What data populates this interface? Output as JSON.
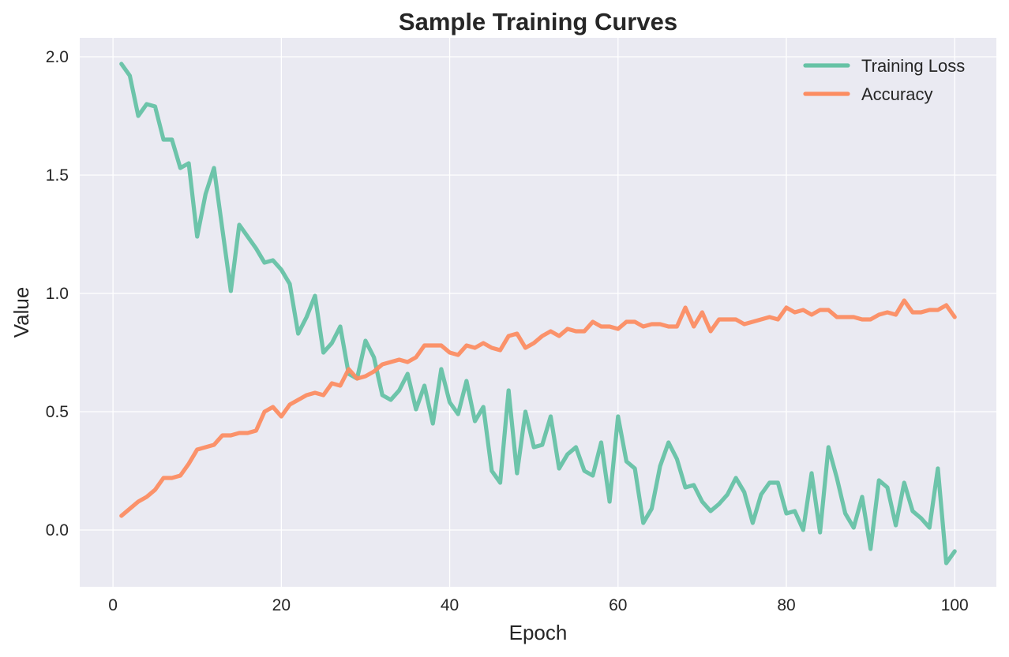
{
  "chart_data": {
    "type": "line",
    "title": "Sample Training Curves",
    "xlabel": "Epoch",
    "ylabel": "Value",
    "xlim": [
      -3.95,
      104.95
    ],
    "ylim": [
      -0.24,
      2.08
    ],
    "xticks": [
      0,
      20,
      40,
      60,
      80,
      100
    ],
    "xtick_labels": [
      "0",
      "20",
      "40",
      "60",
      "80",
      "100"
    ],
    "yticks": [
      0.0,
      0.5,
      1.0,
      1.5,
      2.0
    ],
    "ytick_labels": [
      "0.0",
      "0.5",
      "1.0",
      "1.5",
      "2.0"
    ],
    "grid": true,
    "legend_position": "top-right",
    "background_color": "#eaeaf2",
    "x": [
      1,
      2,
      3,
      4,
      5,
      6,
      7,
      8,
      9,
      10,
      11,
      12,
      13,
      14,
      15,
      16,
      17,
      18,
      19,
      20,
      21,
      22,
      23,
      24,
      25,
      26,
      27,
      28,
      29,
      30,
      31,
      32,
      33,
      34,
      35,
      36,
      37,
      38,
      39,
      40,
      41,
      42,
      43,
      44,
      45,
      46,
      47,
      48,
      49,
      50,
      51,
      52,
      53,
      54,
      55,
      56,
      57,
      58,
      59,
      60,
      61,
      62,
      63,
      64,
      65,
      66,
      67,
      68,
      69,
      70,
      71,
      72,
      73,
      74,
      75,
      76,
      77,
      78,
      79,
      80,
      81,
      82,
      83,
      84,
      85,
      86,
      87,
      88,
      89,
      90,
      91,
      92,
      93,
      94,
      95,
      96,
      97,
      98,
      99,
      100
    ],
    "series": [
      {
        "name": "Training Loss",
        "color": "#66c2a5",
        "values": [
          1.97,
          1.92,
          1.75,
          1.8,
          1.79,
          1.65,
          1.65,
          1.53,
          1.55,
          1.24,
          1.42,
          1.53,
          1.27,
          1.01,
          1.29,
          1.24,
          1.19,
          1.13,
          1.14,
          1.1,
          1.04,
          0.83,
          0.9,
          0.99,
          0.75,
          0.79,
          0.86,
          0.66,
          0.64,
          0.8,
          0.73,
          0.57,
          0.55,
          0.59,
          0.66,
          0.51,
          0.61,
          0.45,
          0.68,
          0.54,
          0.49,
          0.63,
          0.46,
          0.52,
          0.25,
          0.2,
          0.59,
          0.24,
          0.5,
          0.35,
          0.36,
          0.48,
          0.26,
          0.32,
          0.35,
          0.25,
          0.23,
          0.37,
          0.12,
          0.48,
          0.29,
          0.26,
          0.03,
          0.09,
          0.27,
          0.37,
          0.3,
          0.18,
          0.19,
          0.12,
          0.08,
          0.11,
          0.15,
          0.22,
          0.16,
          0.03,
          0.15,
          0.2,
          0.2,
          0.07,
          0.08,
          0.0,
          0.24,
          -0.01,
          0.35,
          0.22,
          0.07,
          0.01,
          0.14,
          -0.08,
          0.21,
          0.18,
          0.02,
          0.2,
          0.08,
          0.05,
          0.01,
          0.26,
          -0.14,
          -0.09
        ]
      },
      {
        "name": "Accuracy",
        "color": "#fc8d62",
        "values": [
          0.06,
          0.09,
          0.12,
          0.14,
          0.17,
          0.22,
          0.22,
          0.23,
          0.28,
          0.34,
          0.35,
          0.36,
          0.4,
          0.4,
          0.41,
          0.41,
          0.42,
          0.5,
          0.52,
          0.48,
          0.53,
          0.55,
          0.57,
          0.58,
          0.57,
          0.62,
          0.61,
          0.68,
          0.64,
          0.65,
          0.67,
          0.7,
          0.71,
          0.72,
          0.71,
          0.73,
          0.78,
          0.78,
          0.78,
          0.75,
          0.74,
          0.78,
          0.77,
          0.79,
          0.77,
          0.76,
          0.82,
          0.83,
          0.77,
          0.79,
          0.82,
          0.84,
          0.82,
          0.85,
          0.84,
          0.84,
          0.88,
          0.86,
          0.86,
          0.85,
          0.88,
          0.88,
          0.86,
          0.87,
          0.87,
          0.86,
          0.86,
          0.94,
          0.86,
          0.92,
          0.84,
          0.89,
          0.89,
          0.89,
          0.87,
          0.88,
          0.89,
          0.9,
          0.89,
          0.94,
          0.92,
          0.93,
          0.91,
          0.93,
          0.93,
          0.9,
          0.9,
          0.9,
          0.89,
          0.89,
          0.91,
          0.92,
          0.91,
          0.97,
          0.92,
          0.92,
          0.93,
          0.93,
          0.95,
          0.9
        ]
      }
    ]
  }
}
